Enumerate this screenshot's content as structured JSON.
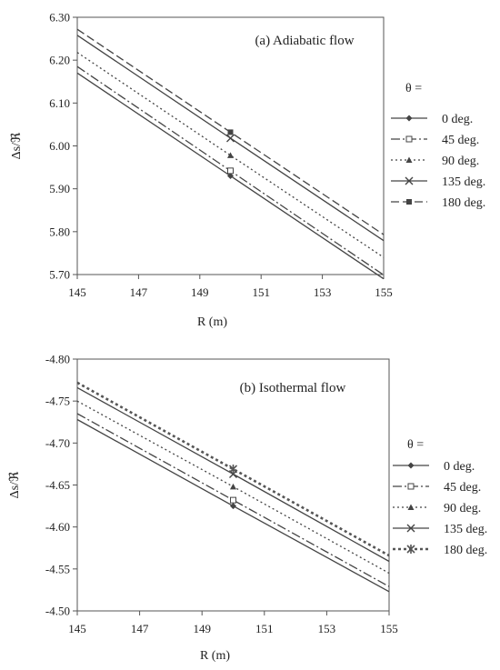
{
  "chart_data": [
    {
      "type": "line",
      "title": "(a) Adiabatic flow",
      "xlabel": "R  (m)",
      "ylabel": "Δs/ℜ",
      "xlim": [
        145,
        155
      ],
      "ylim": [
        5.7,
        6.3
      ],
      "x_ticks": [
        "145",
        "147",
        "149",
        "151",
        "153",
        "155"
      ],
      "y_ticks": [
        "5.70",
        "5.80",
        "5.90",
        "6.00",
        "6.10",
        "6.20",
        "6.30"
      ],
      "grid": false,
      "legend_title": "θ =",
      "legend_position": "right",
      "x": [
        145,
        150,
        155
      ],
      "series": [
        {
          "name": "0 deg.",
          "values": [
            6.17,
            5.93,
            5.69
          ],
          "line": "solid",
          "marker": "diamond",
          "color": "#444444"
        },
        {
          "name": "45 deg.",
          "values": [
            6.185,
            5.942,
            5.699
          ],
          "line": "dashdot",
          "marker": "square-open",
          "color": "#444444"
        },
        {
          "name": "90 deg.",
          "values": [
            6.218,
            5.978,
            5.74
          ],
          "line": "dotted",
          "marker": "triangle",
          "color": "#444444"
        },
        {
          "name": "135 deg.",
          "values": [
            6.258,
            6.018,
            5.779
          ],
          "line": "solid",
          "marker": "x",
          "color": "#444444"
        },
        {
          "name": "180 deg.",
          "values": [
            6.272,
            6.032,
            5.793
          ],
          "line": "dashed",
          "marker": "square",
          "color": "#444444"
        }
      ]
    },
    {
      "type": "line",
      "title": "(b) Isothermal flow",
      "xlabel": "R (m)",
      "ylabel": "Δs/ℜ",
      "xlim": [
        145,
        155
      ],
      "ylim": [
        -4.5,
        -4.8
      ],
      "x_ticks": [
        "145",
        "147",
        "149",
        "151",
        "153",
        "155"
      ],
      "y_ticks": [
        "-4.50",
        "-4.55",
        "-4.60",
        "-4.65",
        "-4.70",
        "-4.75",
        "-4.80"
      ],
      "grid": false,
      "legend_title": "θ =",
      "legend_position": "right",
      "x": [
        145,
        150,
        155
      ],
      "series": [
        {
          "name": "0 deg.",
          "values": [
            -4.728,
            -4.625,
            -4.523
          ],
          "line": "solid",
          "marker": "diamond",
          "color": "#444444"
        },
        {
          "name": "45 deg.",
          "values": [
            -4.735,
            -4.632,
            -4.529
          ],
          "line": "dashdot",
          "marker": "square-open",
          "color": "#444444"
        },
        {
          "name": "90 deg.",
          "values": [
            -4.75,
            -4.648,
            -4.545
          ],
          "line": "dotted",
          "marker": "triangle",
          "color": "#444444"
        },
        {
          "name": "135 deg.",
          "values": [
            -4.766,
            -4.663,
            -4.559
          ],
          "line": "solid",
          "marker": "x",
          "color": "#444444"
        },
        {
          "name": "180 deg.",
          "values": [
            -4.772,
            -4.669,
            -4.566
          ],
          "line": "dotted-thick",
          "marker": "asterisk",
          "color": "#555555"
        }
      ]
    }
  ]
}
